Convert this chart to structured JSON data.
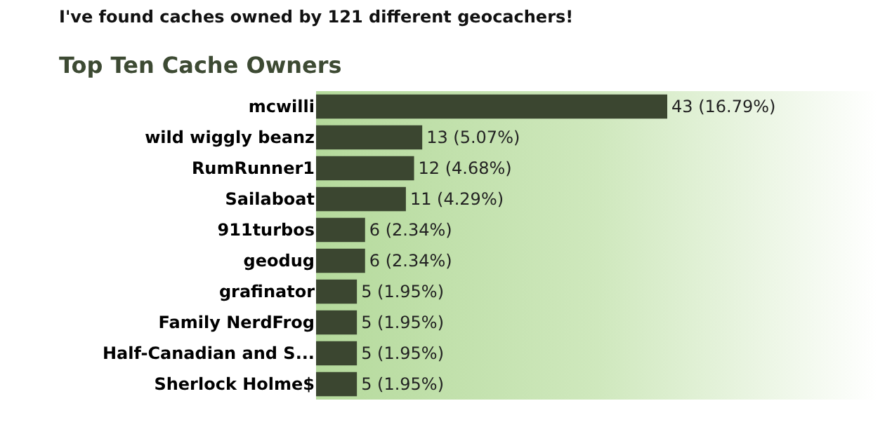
{
  "chart_data": {
    "type": "bar",
    "orientation": "horizontal",
    "title": "I've found caches owned by 121 different geocachers!",
    "subtitle": "Top Ten Cache Owners",
    "categories": [
      "mcwilli",
      "wild wiggly beanz",
      "RumRunner1",
      "Sailaboat",
      "911turbos",
      "geodug",
      "grafinator",
      "Family NerdFrog",
      "Half-Canadian and S...",
      "Sherlock Holme$"
    ],
    "values": [
      43,
      13,
      12,
      11,
      6,
      6,
      5,
      5,
      5,
      5
    ],
    "value_labels": [
      "43 (16.79%)",
      "13 (5.07%)",
      "12 (4.68%)",
      "11 (4.29%)",
      "6 (2.34%)",
      "6 (2.34%)",
      "5 (1.95%)",
      "5 (1.95%)",
      "5 (1.95%)",
      "5 (1.95%)"
    ],
    "color": "#3b4630"
  }
}
